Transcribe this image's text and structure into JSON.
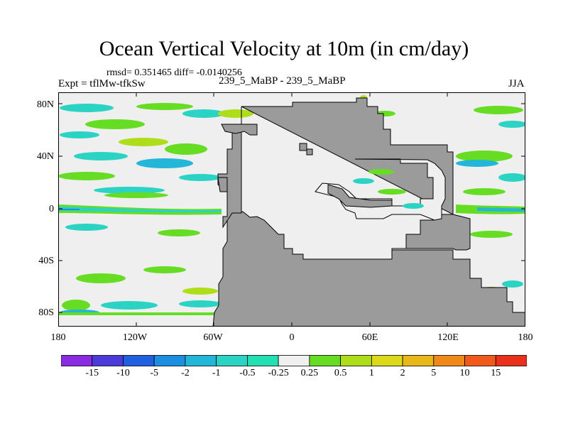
{
  "title": "Ocean Vertical Velocity at 10m (in cm/day)",
  "stats": "rmsd= 0.351465  diff= -0.0140256",
  "expt": "Expt = tflMw-tfkSw",
  "center_label": "239_5_MaBP - 239_5_MaBP",
  "season": "JJA",
  "lat_labels": [
    "80N",
    "40N",
    "0",
    "40S",
    "80S"
  ],
  "lon_labels": [
    "180",
    "120W",
    "60W",
    "0",
    "60E",
    "120E",
    "180"
  ],
  "colorbar": {
    "labels": [
      "-15",
      "-10",
      "-5",
      "-2",
      "-1",
      "-0.5",
      "-0.25",
      "0.25",
      "0.5",
      "1",
      "2",
      "5",
      "10",
      "15"
    ],
    "colors": [
      "#8a2be2",
      "#4b3bd8",
      "#1f5fe0",
      "#1d8fe0",
      "#22b6d8",
      "#2ad3c4",
      "#22e0b2",
      "#f0f0f0",
      "#66dd22",
      "#aede1a",
      "#dcd81a",
      "#e8b81a",
      "#ef8a1a",
      "#ef5a1a",
      "#e8301a"
    ]
  },
  "colors": {
    "land": "#9b9b9b",
    "ocean_neutral": "#efefef",
    "frame": "#000000"
  }
}
